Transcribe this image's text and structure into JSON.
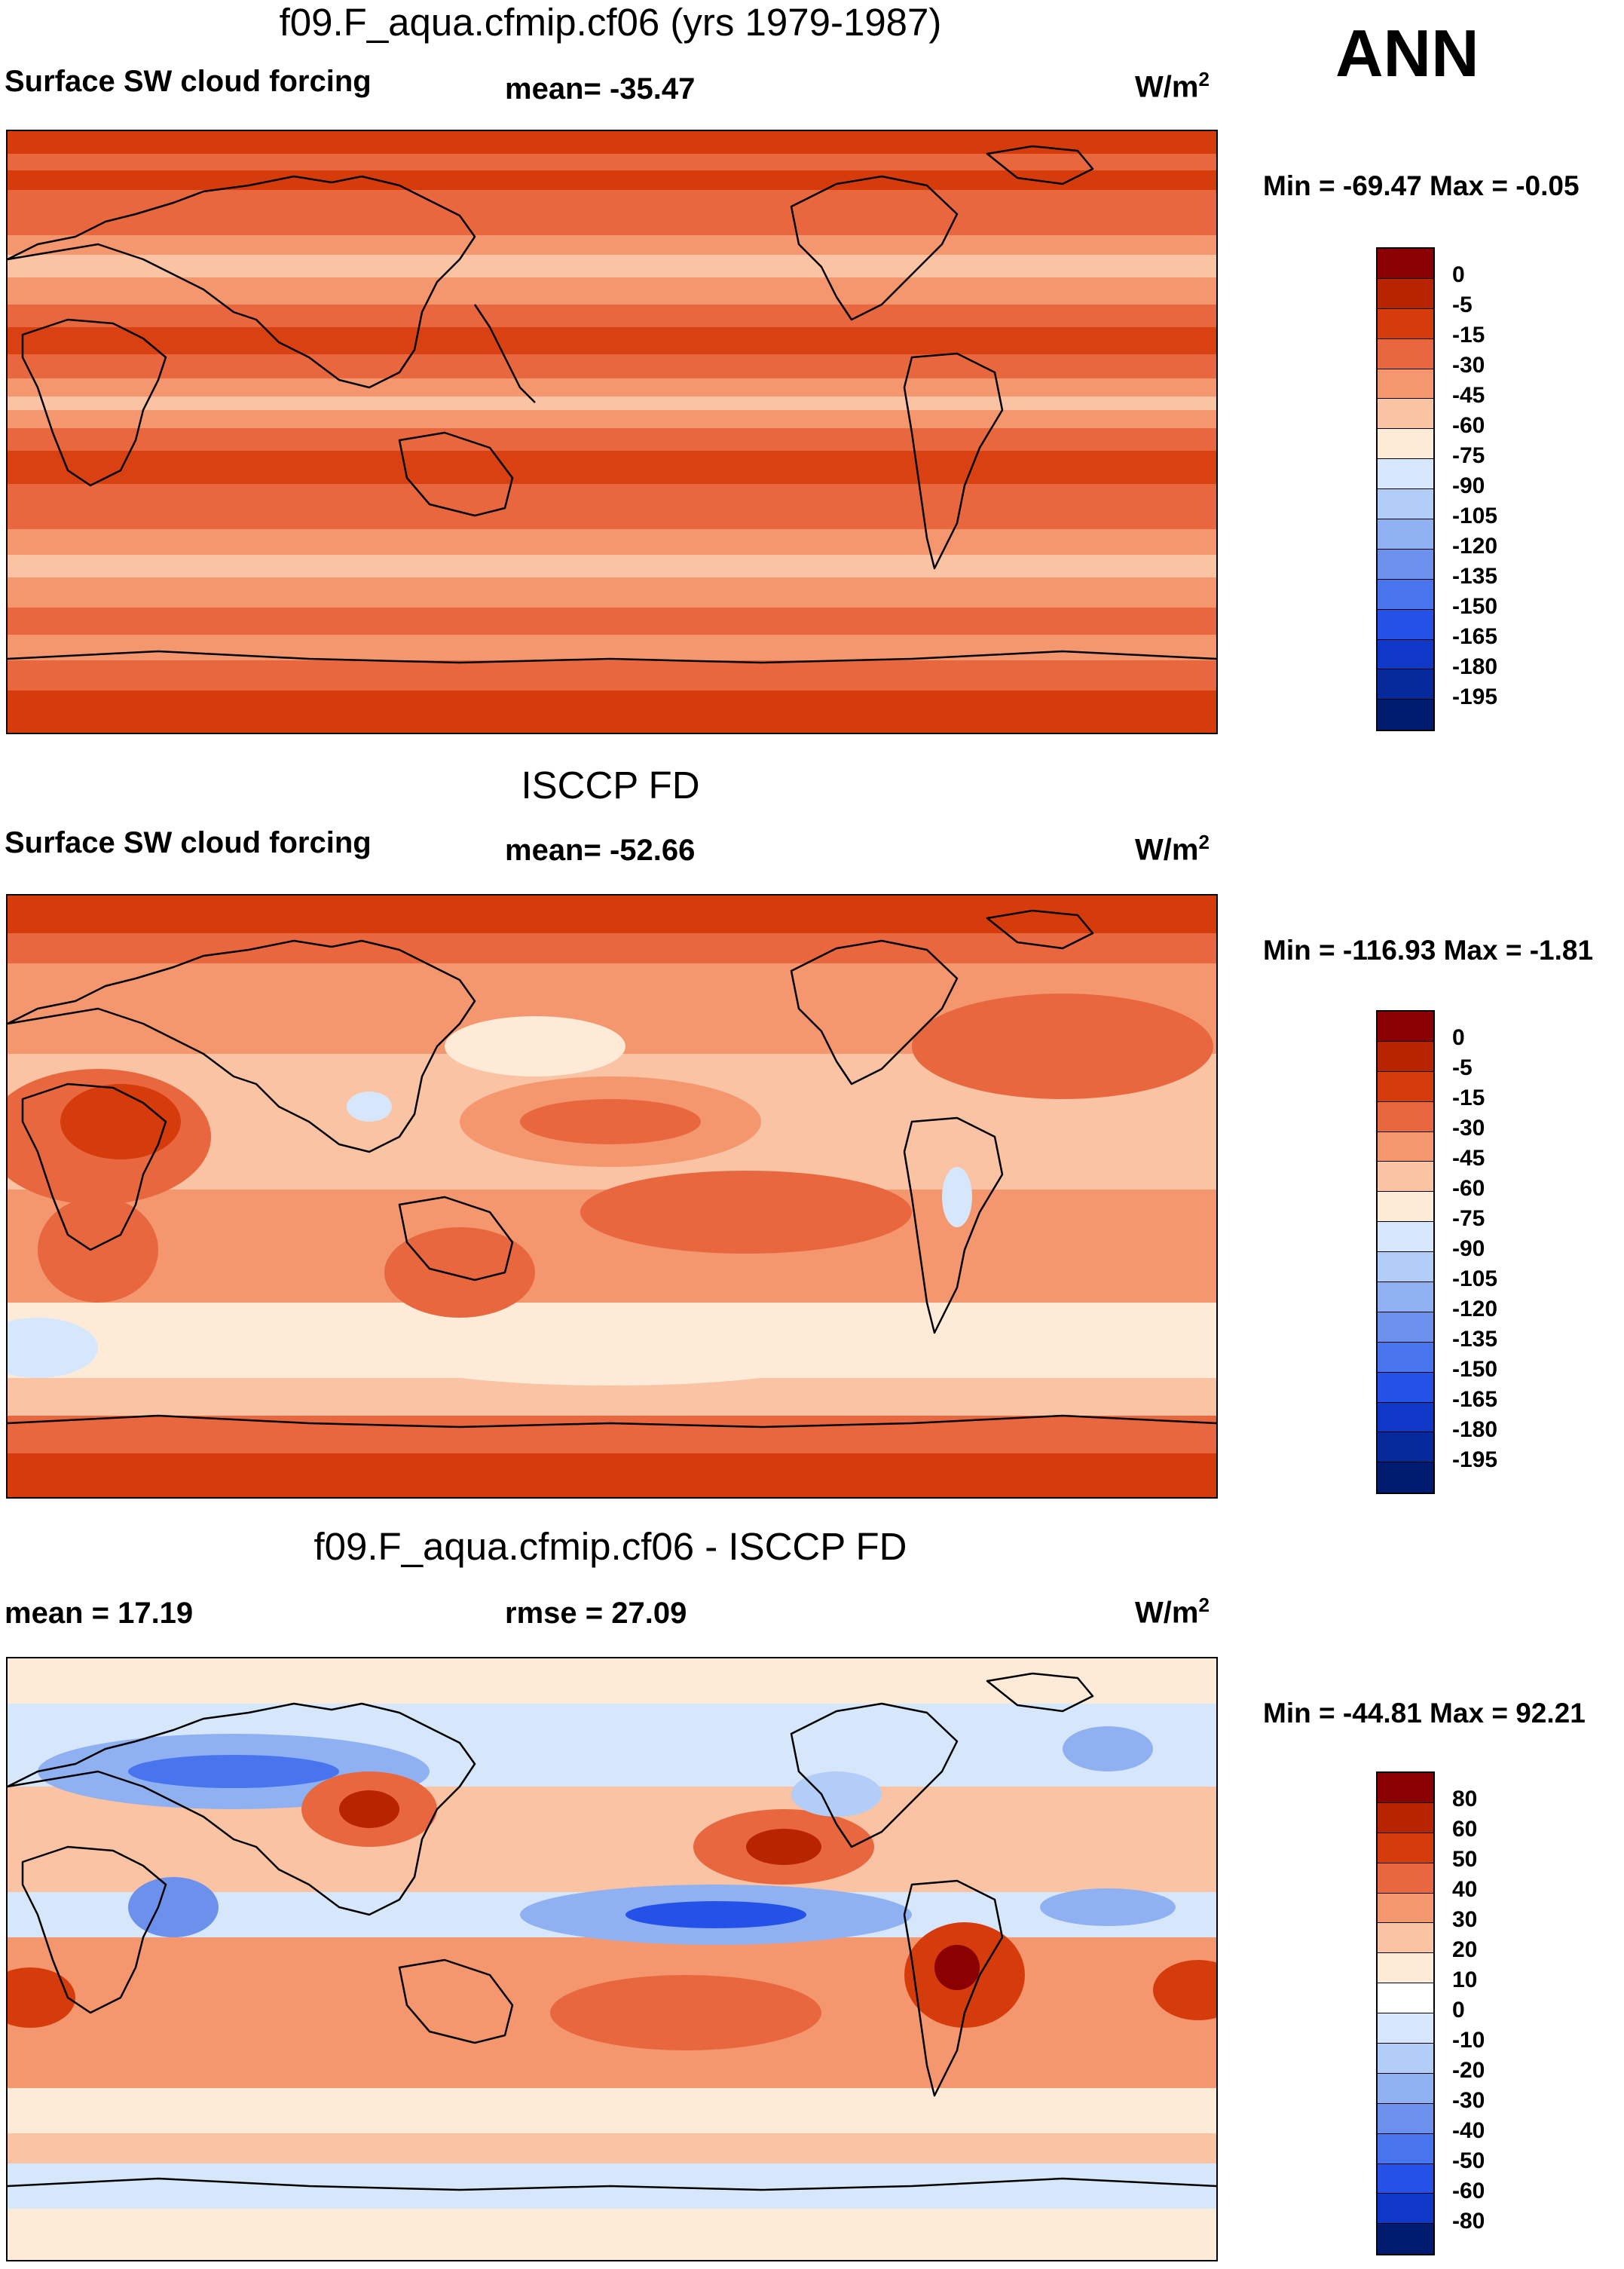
{
  "season": "ANN",
  "palettes": {
    "main": [
      "#f2f5fd",
      "#8b0000",
      "#b82300",
      "#d63b0c",
      "#e8673e",
      "#f4976f",
      "#f9c3a4",
      "#fdebd8",
      "#d7e7fb",
      "#b2cdf7",
      "#8fb1f1",
      "#6c91ec",
      "#4874ee",
      "#2452e8",
      "#0f37c8",
      "#062a9c",
      "#001c70"
    ],
    "diff": [
      "#8b0000",
      "#b82300",
      "#d63b0c",
      "#e8673e",
      "#f4976f",
      "#f9c3a4",
      "#fdebd8",
      "#d7e7fb",
      "#b2cdf7",
      "#8fb1f1",
      "#6c91ec",
      "#4874ee",
      "#2452e8",
      "#0f37c8",
      "#001c70"
    ]
  },
  "chart_data": [
    {
      "type": "heatmap",
      "title": "f09.F_aqua.cfmip.cf06 (yrs 1979-1987)",
      "subtitle": "Surface SW cloud forcing",
      "mean_label": "mean= -35.47",
      "units": "W/m",
      "units_exp": "2",
      "minmax": "Min = -69.47 Max =  -0.05",
      "colorbar_levels": [
        "0",
        "-5",
        "-15",
        "-30",
        "-45",
        "-60",
        "-75",
        "-90",
        "-105",
        "-120",
        "-135",
        "-150",
        "-165",
        "-180",
        "-195"
      ],
      "colorbar_palette": "main"
    },
    {
      "type": "heatmap",
      "title": "ISCCP FD",
      "subtitle": "Surface SW cloud forcing",
      "mean_label": "mean= -52.66",
      "units": "W/m",
      "units_exp": "2",
      "minmax": "Min = -116.93 Max =  -1.81",
      "colorbar_levels": [
        "0",
        "-5",
        "-15",
        "-30",
        "-45",
        "-60",
        "-75",
        "-90",
        "-105",
        "-120",
        "-135",
        "-150",
        "-165",
        "-180",
        "-195"
      ],
      "colorbar_palette": "main"
    },
    {
      "type": "heatmap",
      "title": "f09.F_aqua.cfmip.cf06 - ISCCP FD",
      "subtitle": "mean =  17.19",
      "mean_label": "rmse =  27.09",
      "units": "W/m",
      "units_exp": "2",
      "minmax": "Min = -44.81 Max =  92.21",
      "colorbar_levels": [
        "80",
        "60",
        "50",
        "40",
        "30",
        "20",
        "10",
        "0",
        "-10",
        "-20",
        "-30",
        "-40",
        "-50",
        "-60",
        "-80"
      ],
      "colorbar_palette": "diff"
    }
  ]
}
